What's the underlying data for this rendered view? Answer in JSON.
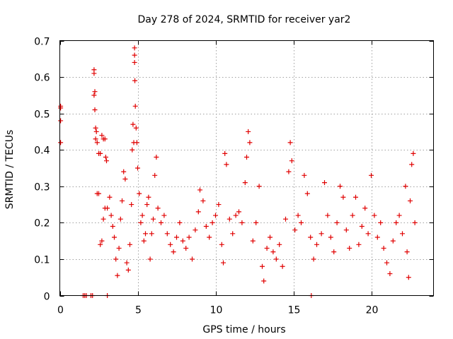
{
  "chart_data": {
    "type": "scatter",
    "title": "Day 278 of 2024, SRMTID for receiver yar2",
    "xlabel": "GPS time / hours",
    "ylabel": "SRMTID / TECUs",
    "xlim": [
      0,
      24
    ],
    "ylim": [
      0,
      0.7
    ],
    "xticks": [
      0,
      5,
      10,
      15,
      20
    ],
    "xtick_labels": [
      "0",
      "5",
      "10",
      "15",
      "20"
    ],
    "yticks": [
      0,
      0.1,
      0.2,
      0.3,
      0.4,
      0.5,
      0.6,
      0.7
    ],
    "ytick_labels": [
      "0",
      "0.1",
      "0.2",
      "0.3",
      "0.4",
      "0.5",
      "0.6",
      "0.7"
    ],
    "grid": true,
    "marker": "+",
    "color": "#e00000",
    "series": [
      {
        "name": "SRMTID",
        "points": [
          [
            0.05,
            0.52
          ],
          [
            0.05,
            0.515
          ],
          [
            0.05,
            0.48
          ],
          [
            0.05,
            0.42
          ],
          [
            1.5,
            0.0
          ],
          [
            1.6,
            0.0
          ],
          [
            1.7,
            0.0
          ],
          [
            2.0,
            0.0
          ],
          [
            2.1,
            0.0
          ],
          [
            3.05,
            0.0
          ],
          [
            16.15,
            0.0
          ],
          [
            2.2,
            0.62
          ],
          [
            2.2,
            0.61
          ],
          [
            2.25,
            0.56
          ],
          [
            2.2,
            0.55
          ],
          [
            2.25,
            0.51
          ],
          [
            2.3,
            0.46
          ],
          [
            2.35,
            0.45
          ],
          [
            2.3,
            0.43
          ],
          [
            2.4,
            0.42
          ],
          [
            2.5,
            0.39
          ],
          [
            2.6,
            0.39
          ],
          [
            2.7,
            0.44
          ],
          [
            2.8,
            0.43
          ],
          [
            2.9,
            0.43
          ],
          [
            2.95,
            0.38
          ],
          [
            3.0,
            0.37
          ],
          [
            2.4,
            0.28
          ],
          [
            2.5,
            0.28
          ],
          [
            2.6,
            0.14
          ],
          [
            2.7,
            0.15
          ],
          [
            2.8,
            0.21
          ],
          [
            2.9,
            0.24
          ],
          [
            3.05,
            0.24
          ],
          [
            3.2,
            0.27
          ],
          [
            3.3,
            0.22
          ],
          [
            3.4,
            0.19
          ],
          [
            3.5,
            0.16
          ],
          [
            3.6,
            0.1
          ],
          [
            3.7,
            0.055
          ],
          [
            3.8,
            0.13
          ],
          [
            3.9,
            0.21
          ],
          [
            4.0,
            0.26
          ],
          [
            4.1,
            0.34
          ],
          [
            4.2,
            0.32
          ],
          [
            4.3,
            0.09
          ],
          [
            4.4,
            0.07
          ],
          [
            4.5,
            0.14
          ],
          [
            4.6,
            0.25
          ],
          [
            4.65,
            0.4
          ],
          [
            4.7,
            0.47
          ],
          [
            4.75,
            0.42
          ],
          [
            4.8,
            0.68
          ],
          [
            4.8,
            0.66
          ],
          [
            4.8,
            0.64
          ],
          [
            4.82,
            0.59
          ],
          [
            4.85,
            0.52
          ],
          [
            4.9,
            0.46
          ],
          [
            4.95,
            0.42
          ],
          [
            5.0,
            0.35
          ],
          [
            5.1,
            0.28
          ],
          [
            5.2,
            0.2
          ],
          [
            5.3,
            0.22
          ],
          [
            5.4,
            0.15
          ],
          [
            5.5,
            0.17
          ],
          [
            5.6,
            0.25
          ],
          [
            5.7,
            0.27
          ],
          [
            5.8,
            0.1
          ],
          [
            5.9,
            0.17
          ],
          [
            6.0,
            0.21
          ],
          [
            6.1,
            0.33
          ],
          [
            6.2,
            0.38
          ],
          [
            6.3,
            0.24
          ],
          [
            6.5,
            0.2
          ],
          [
            6.7,
            0.22
          ],
          [
            6.9,
            0.17
          ],
          [
            7.1,
            0.14
          ],
          [
            7.3,
            0.12
          ],
          [
            7.5,
            0.16
          ],
          [
            7.7,
            0.2
          ],
          [
            7.9,
            0.15
          ],
          [
            8.1,
            0.13
          ],
          [
            8.3,
            0.16
          ],
          [
            8.5,
            0.1
          ],
          [
            8.7,
            0.18
          ],
          [
            8.9,
            0.23
          ],
          [
            9.0,
            0.29
          ],
          [
            9.2,
            0.26
          ],
          [
            9.4,
            0.19
          ],
          [
            9.6,
            0.16
          ],
          [
            9.8,
            0.2
          ],
          [
            10.0,
            0.22
          ],
          [
            10.2,
            0.25
          ],
          [
            10.4,
            0.14
          ],
          [
            10.5,
            0.09
          ],
          [
            10.6,
            0.39
          ],
          [
            10.7,
            0.36
          ],
          [
            10.9,
            0.21
          ],
          [
            11.1,
            0.17
          ],
          [
            11.3,
            0.22
          ],
          [
            11.5,
            0.23
          ],
          [
            11.7,
            0.2
          ],
          [
            11.9,
            0.31
          ],
          [
            12.0,
            0.38
          ],
          [
            12.1,
            0.45
          ],
          [
            12.2,
            0.42
          ],
          [
            12.4,
            0.15
          ],
          [
            12.6,
            0.2
          ],
          [
            12.8,
            0.3
          ],
          [
            13.0,
            0.08
          ],
          [
            13.1,
            0.04
          ],
          [
            13.3,
            0.13
          ],
          [
            13.5,
            0.16
          ],
          [
            13.7,
            0.12
          ],
          [
            13.9,
            0.1
          ],
          [
            14.1,
            0.14
          ],
          [
            14.3,
            0.08
          ],
          [
            14.5,
            0.21
          ],
          [
            14.7,
            0.34
          ],
          [
            14.8,
            0.42
          ],
          [
            14.9,
            0.37
          ],
          [
            15.1,
            0.18
          ],
          [
            15.3,
            0.22
          ],
          [
            15.5,
            0.2
          ],
          [
            15.7,
            0.33
          ],
          [
            15.9,
            0.28
          ],
          [
            16.1,
            0.16
          ],
          [
            16.3,
            0.1
          ],
          [
            16.5,
            0.14
          ],
          [
            16.8,
            0.17
          ],
          [
            17.0,
            0.31
          ],
          [
            17.2,
            0.22
          ],
          [
            17.4,
            0.16
          ],
          [
            17.6,
            0.12
          ],
          [
            17.8,
            0.2
          ],
          [
            18.0,
            0.3
          ],
          [
            18.2,
            0.27
          ],
          [
            18.4,
            0.18
          ],
          [
            18.6,
            0.13
          ],
          [
            18.8,
            0.22
          ],
          [
            19.0,
            0.27
          ],
          [
            19.2,
            0.14
          ],
          [
            19.4,
            0.19
          ],
          [
            19.6,
            0.24
          ],
          [
            19.8,
            0.17
          ],
          [
            20.0,
            0.33
          ],
          [
            20.2,
            0.22
          ],
          [
            20.4,
            0.16
          ],
          [
            20.6,
            0.2
          ],
          [
            20.8,
            0.13
          ],
          [
            21.0,
            0.09
          ],
          [
            21.2,
            0.06
          ],
          [
            21.4,
            0.15
          ],
          [
            21.6,
            0.2
          ],
          [
            21.8,
            0.22
          ],
          [
            22.0,
            0.17
          ],
          [
            22.2,
            0.3
          ],
          [
            22.3,
            0.12
          ],
          [
            22.4,
            0.05
          ],
          [
            22.5,
            0.26
          ],
          [
            22.6,
            0.36
          ],
          [
            22.7,
            0.39
          ],
          [
            22.8,
            0.2
          ]
        ]
      }
    ]
  }
}
